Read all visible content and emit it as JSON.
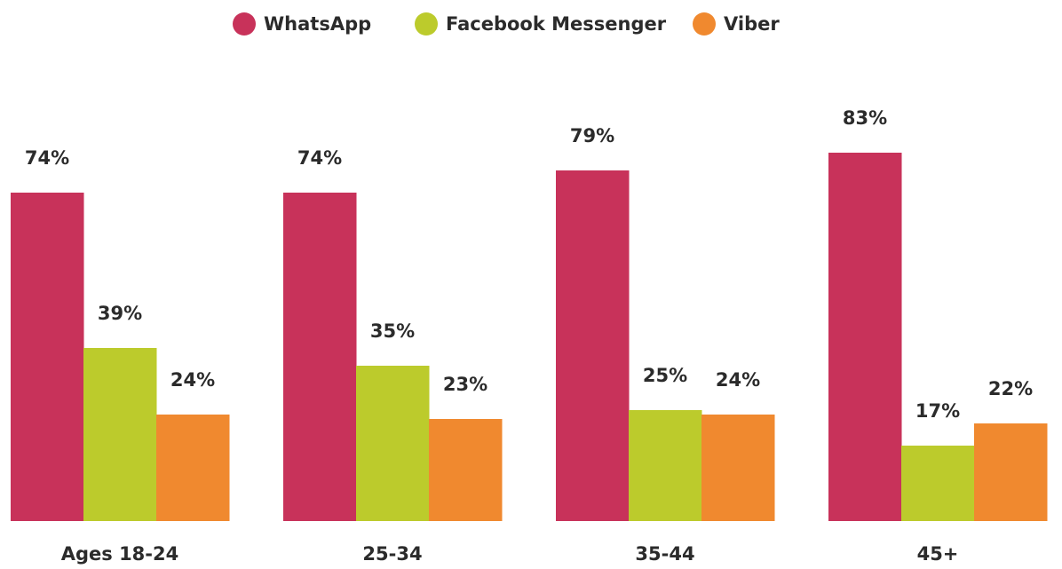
{
  "chart_data": {
    "type": "bar",
    "categories": [
      "Ages 18-24",
      "25-34",
      "35-44",
      "45+"
    ],
    "series": [
      {
        "name": "WhatsApp",
        "color": "#c8325a",
        "values": [
          74,
          74,
          79,
          83
        ],
        "value_labels": [
          "74%",
          "74%",
          "79%",
          "83%"
        ]
      },
      {
        "name": "Facebook Messenger",
        "color": "#bccb2c",
        "values": [
          39,
          35,
          25,
          17
        ],
        "value_labels": [
          "39%",
          "35%",
          "25%",
          "17%"
        ]
      },
      {
        "name": "Viber",
        "color": "#f0892f",
        "values": [
          24,
          23,
          24,
          22
        ],
        "value_labels": [
          "24%",
          "23%",
          "24%",
          "22%"
        ]
      }
    ],
    "legend": "top"
  }
}
